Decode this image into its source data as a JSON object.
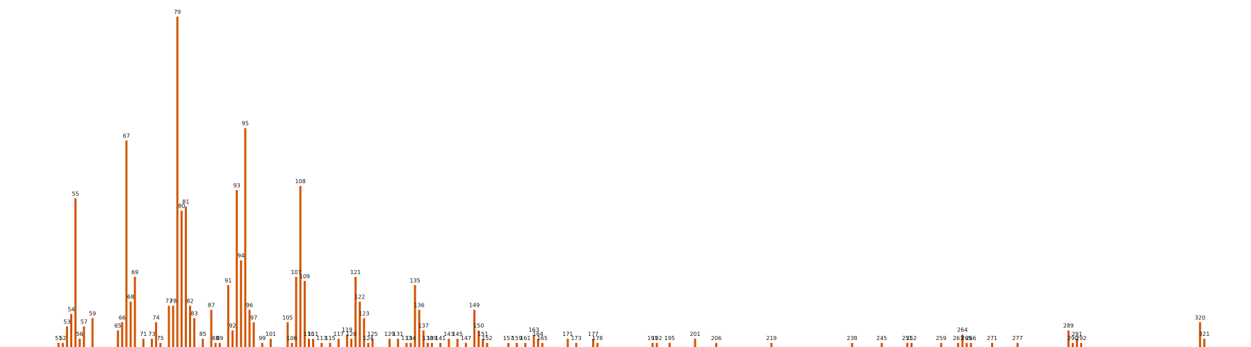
{
  "chart_data": {
    "type": "bar",
    "bar_color": "#d35400",
    "grid": false,
    "ylim": [
      0,
      80
    ],
    "xlim": [
      49,
      323
    ],
    "points": [
      {
        "x": 51,
        "y": 1,
        "label": "51"
      },
      {
        "x": 52,
        "y": 1,
        "label": "52"
      },
      {
        "x": 53,
        "y": 5,
        "label": "53"
      },
      {
        "x": 54,
        "y": 8,
        "label": "54"
      },
      {
        "x": 55,
        "y": 36,
        "label": "55"
      },
      {
        "x": 56,
        "y": 2,
        "label": "56"
      },
      {
        "x": 57,
        "y": 5,
        "label": "57"
      },
      {
        "x": 59,
        "y": 7,
        "label": "59"
      },
      {
        "x": 65,
        "y": 4,
        "label": "65"
      },
      {
        "x": 66,
        "y": 6,
        "label": "66"
      },
      {
        "x": 67,
        "y": 50,
        "label": "67"
      },
      {
        "x": 68,
        "y": 11,
        "label": "68"
      },
      {
        "x": 69,
        "y": 17,
        "label": "69"
      },
      {
        "x": 71,
        "y": 2,
        "label": "71"
      },
      {
        "x": 73,
        "y": 2,
        "label": "73"
      },
      {
        "x": 74,
        "y": 6,
        "label": "74"
      },
      {
        "x": 75,
        "y": 1,
        "label": "75"
      },
      {
        "x": 77,
        "y": 10,
        "label": "77"
      },
      {
        "x": 78,
        "y": 10,
        "label": "78"
      },
      {
        "x": 79,
        "y": 80,
        "label": "79"
      },
      {
        "x": 80,
        "y": 33,
        "label": "80"
      },
      {
        "x": 81,
        "y": 34,
        "label": "81"
      },
      {
        "x": 82,
        "y": 10,
        "label": "82"
      },
      {
        "x": 83,
        "y": 7,
        "label": "83"
      },
      {
        "x": 85,
        "y": 2,
        "label": "85"
      },
      {
        "x": 87,
        "y": 9,
        "label": "87"
      },
      {
        "x": 88,
        "y": 1,
        "label": "88"
      },
      {
        "x": 89,
        "y": 1,
        "label": "89"
      },
      {
        "x": 91,
        "y": 15,
        "label": "91"
      },
      {
        "x": 92,
        "y": 4,
        "label": "92"
      },
      {
        "x": 93,
        "y": 38,
        "label": "93"
      },
      {
        "x": 94,
        "y": 21,
        "label": "94"
      },
      {
        "x": 95,
        "y": 53,
        "label": "95"
      },
      {
        "x": 96,
        "y": 9,
        "label": "96"
      },
      {
        "x": 97,
        "y": 6,
        "label": "97"
      },
      {
        "x": 99,
        "y": 1,
        "label": "99"
      },
      {
        "x": 101,
        "y": 2,
        "label": "101"
      },
      {
        "x": 105,
        "y": 6,
        "label": "105"
      },
      {
        "x": 106,
        "y": 1,
        "label": "106"
      },
      {
        "x": 107,
        "y": 17,
        "label": "107"
      },
      {
        "x": 108,
        "y": 39,
        "label": "108"
      },
      {
        "x": 109,
        "y": 16,
        "label": "109"
      },
      {
        "x": 110,
        "y": 2,
        "label": "110"
      },
      {
        "x": 111,
        "y": 2,
        "label": "111"
      },
      {
        "x": 113,
        "y": 1,
        "label": "113"
      },
      {
        "x": 115,
        "y": 1,
        "label": "115"
      },
      {
        "x": 117,
        "y": 2,
        "label": "117"
      },
      {
        "x": 119,
        "y": 3,
        "label": "119"
      },
      {
        "x": 120,
        "y": 2,
        "label": "120"
      },
      {
        "x": 121,
        "y": 17,
        "label": "121"
      },
      {
        "x": 122,
        "y": 11,
        "label": "122"
      },
      {
        "x": 123,
        "y": 7,
        "label": "123"
      },
      {
        "x": 124,
        "y": 1,
        "label": "124"
      },
      {
        "x": 125,
        "y": 2,
        "label": "125"
      },
      {
        "x": 129,
        "y": 2,
        "label": "129"
      },
      {
        "x": 131,
        "y": 2,
        "label": "131"
      },
      {
        "x": 133,
        "y": 1,
        "label": "133"
      },
      {
        "x": 134,
        "y": 1,
        "label": "134"
      },
      {
        "x": 135,
        "y": 15,
        "label": "135"
      },
      {
        "x": 136,
        "y": 9,
        "label": "136"
      },
      {
        "x": 137,
        "y": 4,
        "label": "137"
      },
      {
        "x": 138,
        "y": 1,
        "label": "138"
      },
      {
        "x": 139,
        "y": 1,
        "label": "139"
      },
      {
        "x": 141,
        "y": 1,
        "label": "141"
      },
      {
        "x": 143,
        "y": 2,
        "label": "143"
      },
      {
        "x": 145,
        "y": 2,
        "label": "145"
      },
      {
        "x": 147,
        "y": 1,
        "label": "147"
      },
      {
        "x": 149,
        "y": 9,
        "label": "149"
      },
      {
        "x": 150,
        "y": 4,
        "label": "150"
      },
      {
        "x": 151,
        "y": 2,
        "label": "151"
      },
      {
        "x": 152,
        "y": 1,
        "label": "152"
      },
      {
        "x": 157,
        "y": 1,
        "label": "157"
      },
      {
        "x": 159,
        "y": 1,
        "label": "159"
      },
      {
        "x": 161,
        "y": 1,
        "label": "161"
      },
      {
        "x": 163,
        "y": 3,
        "label": "163"
      },
      {
        "x": 164,
        "y": 2,
        "label": "164"
      },
      {
        "x": 165,
        "y": 1,
        "label": "165"
      },
      {
        "x": 171,
        "y": 2,
        "label": "171"
      },
      {
        "x": 173,
        "y": 1,
        "label": "173"
      },
      {
        "x": 177,
        "y": 2,
        "label": "177"
      },
      {
        "x": 178,
        "y": 1,
        "label": "178"
      },
      {
        "x": 191,
        "y": 1,
        "label": "191"
      },
      {
        "x": 192,
        "y": 1,
        "label": "192"
      },
      {
        "x": 195,
        "y": 1,
        "label": "195"
      },
      {
        "x": 201,
        "y": 2,
        "label": "201"
      },
      {
        "x": 206,
        "y": 1,
        "label": "206"
      },
      {
        "x": 219,
        "y": 1,
        "label": "219"
      },
      {
        "x": 238,
        "y": 1,
        "label": "238"
      },
      {
        "x": 245,
        "y": 1,
        "label": "245"
      },
      {
        "x": 251,
        "y": 1,
        "label": "251"
      },
      {
        "x": 252,
        "y": 1,
        "label": "252"
      },
      {
        "x": 259,
        "y": 1,
        "label": "259"
      },
      {
        "x": 263,
        "y": 1,
        "label": "263"
      },
      {
        "x": 264,
        "y": 3,
        "label": "264"
      },
      {
        "x": 265,
        "y": 1,
        "label": "265"
      },
      {
        "x": 266,
        "y": 1,
        "label": "266"
      },
      {
        "x": 271,
        "y": 1,
        "label": "271"
      },
      {
        "x": 277,
        "y": 1,
        "label": "277"
      },
      {
        "x": 289,
        "y": 4,
        "label": "289"
      },
      {
        "x": 290,
        "y": 1,
        "label": "290"
      },
      {
        "x": 291,
        "y": 2,
        "label": "291"
      },
      {
        "x": 292,
        "y": 1,
        "label": "292"
      },
      {
        "x": 320,
        "y": 6,
        "label": "320"
      },
      {
        "x": 321,
        "y": 2,
        "label": "321"
      }
    ]
  }
}
